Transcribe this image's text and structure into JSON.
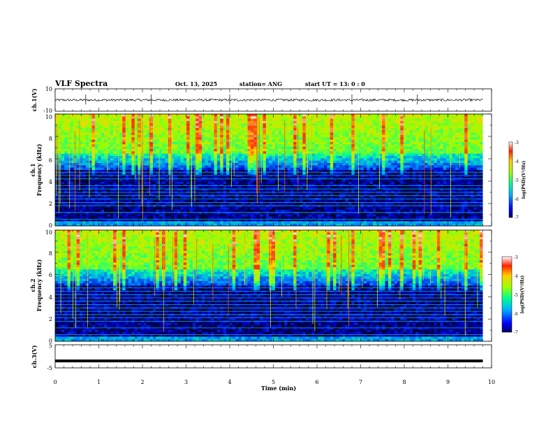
{
  "header": {
    "title": "VLF Spectra",
    "date": "Oct. 13, 2025",
    "station": "station= ANG",
    "start_ut": "start  UT =   13: 0   : 0"
  },
  "chart_data": [
    {
      "type": "line",
      "id": "ch1-voltage",
      "ylabel": "ch.1(V)",
      "xlim": [
        0,
        10
      ],
      "ylim": [
        -10,
        10
      ],
      "yticklabels": [
        "10",
        "-10"
      ],
      "baseline": 0,
      "noise_amplitude": 1,
      "spikes_min": [
        0.7,
        2.2,
        4.0,
        6.8,
        8.3
      ]
    },
    {
      "type": "heatmap",
      "id": "ch1-spectrogram",
      "ylabel_channel": "ch.1",
      "ylabel": "Frequency (kHz)",
      "xlim": [
        0,
        9.8
      ],
      "ylim": [
        0,
        10
      ],
      "yticks": [
        "0",
        "2",
        "4",
        "6",
        "8",
        "10"
      ],
      "colorbar": {
        "label": "log(PSD)(V²/Hz)",
        "range": [
          -7,
          -3
        ],
        "ticks": [
          "-3",
          "-4",
          "-5",
          "-6",
          "-7"
        ]
      },
      "tone_lines_khz": [
        0.3,
        0.6,
        1.2,
        1.8,
        2.1,
        2.4,
        2.7,
        3.0,
        3.3,
        3.6,
        4.2,
        4.5,
        4.8
      ]
    },
    {
      "type": "heatmap",
      "id": "ch2-spectrogram",
      "ylabel_channel": "ch.2",
      "ylabel": "Frequency (kHz)",
      "xlim": [
        0,
        9.8
      ],
      "ylim": [
        0,
        10
      ],
      "yticks": [
        "0",
        "2",
        "4",
        "6",
        "8",
        "10"
      ],
      "colorbar": {
        "label": "log(PSD)(V²/Hz)",
        "range": [
          -7,
          -3
        ],
        "ticks": [
          "-3",
          "-4",
          "-5",
          "-6",
          "-7"
        ]
      },
      "tone_lines_khz": [
        0.6,
        1.2,
        1.8,
        2.1,
        2.4,
        2.7,
        3.0,
        3.3,
        3.6,
        3.9,
        4.2,
        4.5,
        4.8
      ]
    },
    {
      "type": "line",
      "id": "ch3-voltage",
      "ylabel": "ch.3(V)",
      "xlim": [
        0,
        10
      ],
      "ylim": [
        -5,
        5
      ],
      "yticklabels": [
        "5",
        "-5"
      ],
      "baseline": -2
    }
  ],
  "time_axis": {
    "label": "Time  (min)",
    "ticks": [
      "0",
      "1",
      "2",
      "3",
      "4",
      "5",
      "6",
      "7",
      "8",
      "9",
      "10"
    ]
  }
}
